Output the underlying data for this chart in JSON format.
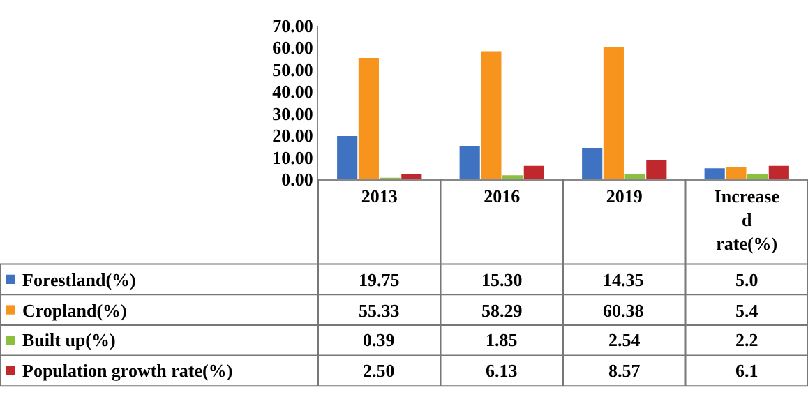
{
  "chart_data": {
    "type": "bar",
    "categories": [
      "2013",
      "2016",
      "2019",
      "Increased rate(%)"
    ],
    "series": [
      {
        "name": "Forestland(%)",
        "color": "#3f73c2",
        "values": [
          19.75,
          15.3,
          14.35,
          5.0
        ],
        "value_labels": [
          "19.75",
          "15.30",
          "14.35",
          "5.0"
        ]
      },
      {
        "name": "Cropland(%)",
        "color": "#f7941d",
        "values": [
          55.33,
          58.29,
          60.38,
          5.4
        ],
        "value_labels": [
          "55.33",
          "58.29",
          "60.38",
          "5.4"
        ]
      },
      {
        "name": "Built up(%)",
        "color": "#8dbf3f",
        "values": [
          0.39,
          1.85,
          2.54,
          2.2
        ],
        "value_labels": [
          "0.39",
          "1.85",
          "2.54",
          "2.2"
        ]
      },
      {
        "name": "Population growth rate(%)",
        "color": "#c0282d",
        "values": [
          2.5,
          6.13,
          8.57,
          6.1
        ],
        "value_labels": [
          "2.50",
          "6.13",
          "8.57",
          "6.1"
        ]
      }
    ],
    "ylim": [
      0,
      70
    ],
    "yticks": [
      {
        "value": 0,
        "label": "0.00"
      },
      {
        "value": 10,
        "label": "10.00"
      },
      {
        "value": 20,
        "label": "20.00"
      },
      {
        "value": 30,
        "label": "30.00"
      },
      {
        "value": 40,
        "label": "40.00"
      },
      {
        "value": 50,
        "label": "50.00"
      },
      {
        "value": 60,
        "label": "60.00"
      },
      {
        "value": 70,
        "label": "70.00"
      }
    ],
    "grid": false,
    "legend": "left"
  }
}
